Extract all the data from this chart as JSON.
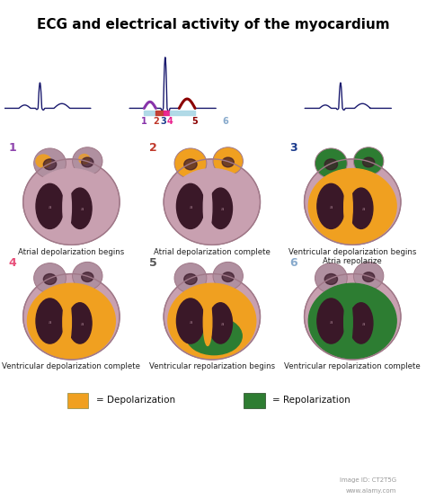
{
  "title": "ECG and electrical activity of the myocardium",
  "title_fontsize": 11,
  "bg_color": "#ffffff",
  "ecg_grid_color": "#ddeef5",
  "ecg_line_color": "#1a1a6e",
  "labels": [
    "Atrial depolarization begins",
    "Atrial depolarization complete",
    "Ventricular depolarization begins\nAtria repolarize",
    "Ventricular depolarization complete",
    "Ventricular repolarization begins",
    "Ventricular repolarization complete"
  ],
  "heart_numbers": [
    "1",
    "2",
    "3",
    "4",
    "5",
    "6"
  ],
  "number_colors": [
    "#8e44ad",
    "#c0392b",
    "#1a3a8c",
    "#e8507a",
    "#555555",
    "#88aacc"
  ],
  "legend_depol_color": "#f0a020",
  "legend_repol_color": "#2e7d32",
  "label_fontsize": 6.2,
  "outer_heart_color": "#c8a0b0",
  "outer_heart_edge": "#a07888",
  "atria_color": "#b090a0",
  "atria_edge": "#906878",
  "wall_color": "#c8a0b0",
  "cavity_color": "#3a1828",
  "orange": "#f0a020",
  "green": "#2d7d32",
  "dark_wall": "#7a5060"
}
